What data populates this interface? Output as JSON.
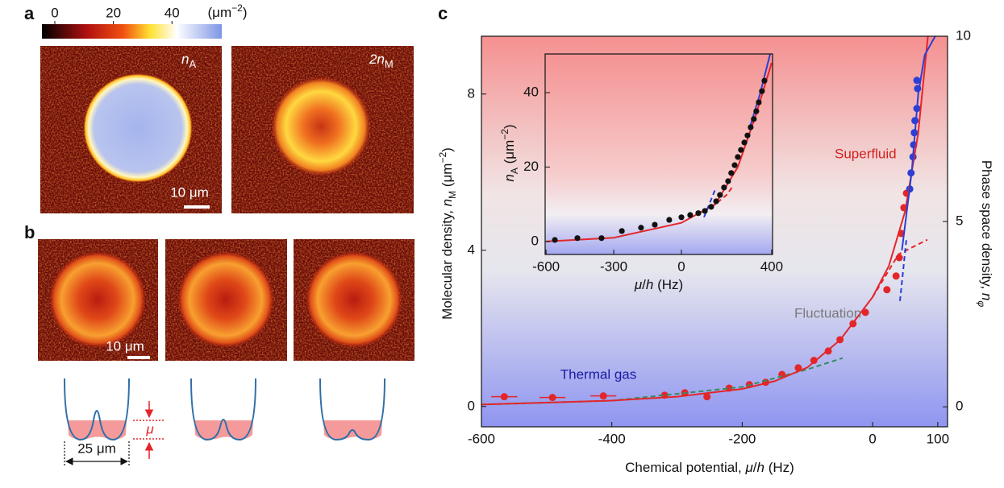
{
  "panel_labels": [
    "a",
    "b",
    "c"
  ],
  "colorbar": {
    "lim": [
      -4.4,
      57
    ],
    "ticks": [
      0,
      20,
      40
    ],
    "unit": [
      "(μm",
      "−2",
      ")"
    ]
  },
  "panel_a": {
    "images": [
      [
        "n",
        "A"
      ],
      [
        "2n",
        "M"
      ]
    ],
    "scale_bar": "10 μm"
  },
  "panel_b": {
    "scale_bar": "10 μm",
    "mu": "μ",
    "width": "25 μm"
  },
  "chart_data": [
    {
      "type": "scatter",
      "xlabel": [
        "Chemical potential, ",
        "μ",
        "/",
        "h",
        "  (Hz)"
      ],
      "ylabel": [
        "Molecular density, ",
        "n",
        "M",
        " (μm",
        "−2",
        ")"
      ],
      "y2label": [
        "Phase space density, ",
        "n",
        "φ"
      ],
      "annotations": [
        {
          "text": "Superfluid",
          "color": "#d42020"
        },
        {
          "text": "Fluctuation",
          "color": "#7a7a7a"
        },
        {
          "text": "Thermal gas",
          "color": "#1a1aa0"
        }
      ],
      "xlim": [
        -600,
        115
      ],
      "ylim": [
        -0.52,
        9.48
      ],
      "y2lim": [
        -0.54,
        10
      ],
      "xticks": [
        -600,
        -400,
        -200,
        0,
        100
      ],
      "yticks": [
        0,
        4,
        8
      ],
      "y2ticks": [
        0,
        5,
        10
      ],
      "series": [
        {
          "color": "#e3262a",
          "x": [
            -565,
            -491,
            -413
          ],
          "values": [
            0.25,
            0.23,
            0.27
          ],
          "xerr": [
            20,
            20,
            20
          ]
        },
        {
          "color": "#e3262a",
          "x": [
            -319,
            -288,
            -254,
            -220,
            -189,
            -164,
            -139,
            -114,
            -90,
            -68,
            -50,
            -30,
            -11,
            22,
            36,
            41,
            44,
            48,
            52
          ],
          "values": [
            0.29,
            0.35,
            0.25,
            0.47,
            0.56,
            0.62,
            0.82,
            0.99,
            1.18,
            1.42,
            1.71,
            2.12,
            2.41,
            2.99,
            3.34,
            3.81,
            4.43,
            5.09,
            5.46
          ]
        },
        {
          "color": "#2a3fd6",
          "x": [
            57,
            59,
            62,
            63,
            64,
            65,
            68,
            69,
            68
          ],
          "values": [
            5.57,
            5.98,
            6.39,
            6.7,
            7.01,
            7.32,
            7.63,
            8.14,
            8.35
          ]
        },
        {
          "style": "line",
          "color": "#2f8f5a",
          "dash": true,
          "x": [
            -600,
            -400,
            -200,
            -100,
            -46
          ],
          "values": [
            0.05,
            0.15,
            0.5,
            0.95,
            1.24
          ]
        },
        {
          "style": "line",
          "color": "#e3262a",
          "x": [
            -600,
            -400,
            -300,
            -200,
            -150,
            -100,
            -50,
            0,
            25,
            50,
            70,
            85
          ],
          "values": [
            0.05,
            0.15,
            0.25,
            0.45,
            0.65,
            1.0,
            1.7,
            2.8,
            3.6,
            5.0,
            7.0,
            9.5
          ]
        },
        {
          "style": "line",
          "color": "#e3262a",
          "dash": true,
          "x": [
            0,
            40,
            84
          ],
          "values": [
            2.8,
            3.9,
            4.27
          ]
        },
        {
          "style": "line",
          "color": "#2a3fd6",
          "dash": true,
          "x": [
            42,
            52
          ],
          "values": [
            2.7,
            4.3
          ]
        },
        {
          "style": "line",
          "color": "#2a3fd6",
          "x": [
            45,
            60,
            70,
            80,
            96
          ],
          "values": [
            4.0,
            6.0,
            8.0,
            9.0,
            9.48
          ]
        }
      ]
    },
    {
      "type": "scatter",
      "xlabel": [
        "μ",
        "/",
        "h",
        " (Hz)"
      ],
      "ylabel": [
        "n",
        "A",
        " (μm",
        "−2",
        ")"
      ],
      "xlim": [
        -604,
        404
      ],
      "ylim": [
        -3.5,
        50.4
      ],
      "xticks": [
        -600,
        -300,
        0,
        400
      ],
      "yticks": [
        0,
        20,
        40
      ],
      "series": [
        {
          "style": "line",
          "color": "#e3262a",
          "x": [
            -600,
            -300,
            0,
            150,
            250,
            330,
            400
          ],
          "values": [
            0,
            1,
            5,
            10,
            20,
            34,
            48
          ]
        },
        {
          "style": "line",
          "color": "#e3262a",
          "dash": true,
          "x": [
            100,
            150,
            200,
            230
          ],
          "values": [
            8,
            10,
            12.5,
            15
          ]
        },
        {
          "style": "line",
          "color": "#2a3fd6",
          "dash": true,
          "x": [
            100,
            150
          ],
          "values": [
            6.5,
            14
          ]
        },
        {
          "style": "line",
          "color": "#2a3fd6",
          "x": [
            300,
            350,
            400
          ],
          "values": [
            30,
            40,
            52
          ]
        },
        {
          "color": "#111111",
          "x": [
            -561,
            -461,
            -354,
            -264,
            -179,
            -118,
            -54,
            0,
            39,
            75,
            104,
            132,
            154,
            171,
            189,
            207,
            221,
            236,
            250,
            264,
            279,
            293,
            307,
            321,
            332,
            343,
            357,
            368
          ],
          "values": [
            0.4,
            0.9,
            0.9,
            2.8,
            3.7,
            4.5,
            5.8,
            6.5,
            7.1,
            7.6,
            8.2,
            9.3,
            10.8,
            12.5,
            14.5,
            16.2,
            18.4,
            20.5,
            22.7,
            24.6,
            26.6,
            28.5,
            30.7,
            32.9,
            35.0,
            37.4,
            40.4,
            43.2
          ]
        }
      ]
    }
  ]
}
